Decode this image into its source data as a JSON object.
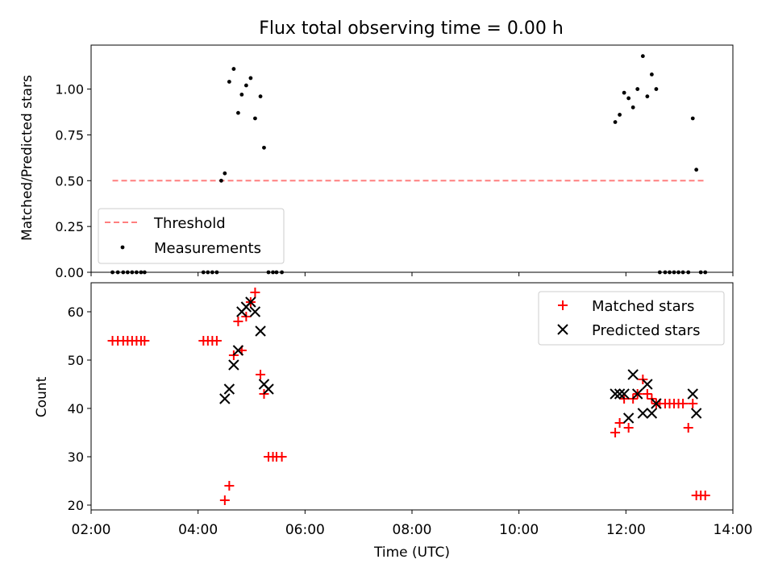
{
  "chart_data": [
    {
      "type": "scatter",
      "title": "Flux total observing time = 0.00 h",
      "xlabel": "",
      "ylabel": "Matched/Predicted stars",
      "xlim": [
        "02:00",
        "14:00"
      ],
      "ylim": [
        0,
        1.24
      ],
      "yticks": [
        "0.00",
        "0.25",
        "0.50",
        "0.75",
        "1.00"
      ],
      "legend": {
        "position": "lower-left",
        "entries": [
          "Threshold",
          "Measurements"
        ]
      },
      "threshold": {
        "name": "Threshold",
        "value": 0.5,
        "x_start": "02:24",
        "x_end": "13:30",
        "color": "#ff7f7f"
      },
      "series": [
        {
          "name": "Measurements",
          "color": "#000000",
          "x": [
            "02:24",
            "02:30",
            "02:36",
            "02:41",
            "02:46",
            "02:51",
            "02:56",
            "03:00",
            "04:06",
            "04:11",
            "04:16",
            "04:21",
            "04:26",
            "04:30",
            "04:35",
            "04:40",
            "04:45",
            "04:49",
            "04:54",
            "04:59",
            "05:04",
            "05:10",
            "05:14",
            "05:19",
            "05:24",
            "05:28",
            "05:34",
            "11:48",
            "11:53",
            "11:58",
            "12:03",
            "12:08",
            "12:13",
            "12:19",
            "12:24",
            "12:29",
            "12:34",
            "12:38",
            "12:44",
            "12:49",
            "12:54",
            "12:59",
            "13:04",
            "13:10",
            "13:15",
            "13:19",
            "13:24",
            "13:29"
          ],
          "y": [
            0,
            0,
            0,
            0,
            0,
            0,
            0,
            0,
            0,
            0,
            0,
            0,
            0.5,
            0.54,
            1.04,
            1.11,
            0.87,
            0.97,
            1.02,
            1.06,
            0.84,
            0.96,
            0.68,
            0,
            0,
            0,
            0,
            0.82,
            0.86,
            0.98,
            0.95,
            0.9,
            1.0,
            1.18,
            0.96,
            1.08,
            1.0,
            0,
            0,
            0,
            0,
            0,
            0,
            0,
            0.84,
            0.56,
            0,
            0
          ]
        }
      ]
    },
    {
      "type": "scatter",
      "title": "",
      "xlabel": "Time (UTC)",
      "ylabel": "Count",
      "xlim": [
        "02:00",
        "14:00"
      ],
      "xticks": [
        "02:00",
        "04:00",
        "06:00",
        "08:00",
        "10:00",
        "12:00",
        "14:00"
      ],
      "ylim": [
        19,
        66
      ],
      "yticks": [
        "20",
        "30",
        "40",
        "50",
        "60"
      ],
      "legend": {
        "position": "top-right",
        "entries": [
          "Matched stars",
          "Predicted stars"
        ]
      },
      "series": [
        {
          "name": "Matched stars",
          "marker": "+",
          "color": "#ff0000",
          "x": [
            "02:24",
            "02:30",
            "02:36",
            "02:41",
            "02:46",
            "02:51",
            "02:56",
            "03:00",
            "04:06",
            "04:11",
            "04:16",
            "04:21",
            "04:30",
            "04:35",
            "04:40",
            "04:45",
            "04:49",
            "04:54",
            "04:59",
            "05:04",
            "05:10",
            "05:14",
            "05:19",
            "05:24",
            "05:28",
            "05:34",
            "11:48",
            "11:53",
            "11:58",
            "12:03",
            "12:08",
            "12:13",
            "12:19",
            "12:24",
            "12:29",
            "12:34",
            "12:38",
            "12:44",
            "12:49",
            "12:54",
            "12:59",
            "13:04",
            "13:10",
            "13:15",
            "13:19",
            "13:24",
            "13:29"
          ],
          "y": [
            54,
            54,
            54,
            54,
            54,
            54,
            54,
            54,
            54,
            54,
            54,
            54,
            21,
            24,
            51,
            58,
            52,
            59,
            62,
            64,
            47,
            43,
            30,
            30,
            30,
            30,
            35,
            37,
            42,
            36,
            42,
            43,
            46,
            43,
            42,
            41,
            41,
            41,
            41,
            41,
            41,
            41,
            36,
            41,
            22,
            22,
            22
          ]
        },
        {
          "name": "Predicted stars",
          "marker": "x",
          "color": "#000000",
          "x": [
            "04:30",
            "04:35",
            "04:40",
            "04:45",
            "04:49",
            "04:54",
            "04:59",
            "05:04",
            "05:10",
            "05:14",
            "05:19",
            "11:48",
            "11:53",
            "11:58",
            "12:03",
            "12:08",
            "12:13",
            "12:19",
            "12:24",
            "12:29",
            "12:34",
            "13:15",
            "13:19"
          ],
          "y": [
            42,
            44,
            49,
            52,
            60,
            61,
            62,
            60,
            56,
            45,
            44,
            43,
            43,
            43,
            38,
            47,
            43,
            39,
            45,
            39,
            41,
            43,
            39
          ]
        }
      ]
    }
  ]
}
